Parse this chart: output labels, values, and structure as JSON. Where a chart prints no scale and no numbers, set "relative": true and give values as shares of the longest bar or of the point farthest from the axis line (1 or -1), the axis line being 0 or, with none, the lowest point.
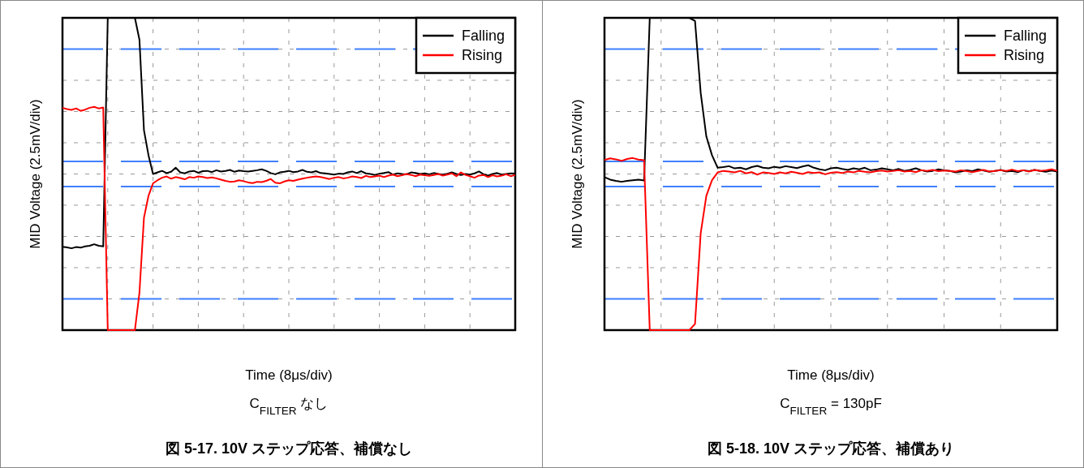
{
  "chart_data": [
    {
      "type": "line",
      "relative": true,
      "title": "図 5-17. 10V ステップ応答、補償なし",
      "xlabel": "Time (8μs/div)",
      "ylabel": "MID Voltage (2.5mV/div)",
      "annotations": [
        "C$_{FILTER}$ なし"
      ],
      "grid": true,
      "legend": "top right",
      "line_style": "solid",
      "marker": "none",
      "categories": [
        null,
        null,
        null,
        null,
        null,
        null,
        null,
        null,
        null,
        null,
        null,
        null,
        null,
        null,
        null,
        null,
        null,
        null,
        null,
        null,
        null,
        null,
        null,
        null,
        null,
        null,
        null,
        null,
        null,
        null,
        null,
        null,
        null,
        null,
        null,
        null,
        null,
        null,
        null,
        null,
        null,
        null,
        null,
        null,
        null,
        null,
        null,
        null,
        null,
        null,
        null,
        null,
        null,
        null,
        null,
        null,
        null,
        null,
        null,
        null,
        null,
        null,
        null,
        null,
        null,
        null,
        null,
        null,
        null,
        null,
        null,
        null,
        null,
        null,
        null,
        null,
        null,
        null,
        null,
        null,
        null,
        null,
        null,
        null,
        null,
        null,
        null,
        null,
        null,
        null,
        null,
        null,
        null,
        null,
        null,
        null,
        null,
        null,
        null,
        null,
        null
      ],
      "ref_lines": [
        {
          "axis": "y",
          "value": 0.9,
          "color": "#3f7fff",
          "line_style": "dashed"
        },
        {
          "axis": "y",
          "value": 0.54,
          "color": "#3f7fff",
          "line_style": "dashed"
        },
        {
          "axis": "y",
          "value": 0.46,
          "color": "#3f7fff",
          "line_style": "dashed"
        },
        {
          "axis": "y",
          "value": 0.1,
          "color": "#3f7fff",
          "line_style": "dashed"
        }
      ],
      "series": [
        {
          "name": "Falling",
          "color": "#000000",
          "values": [
            0.267,
            0.265,
            0.262,
            0.266,
            0.264,
            0.268,
            0.27,
            0.275,
            0.27,
            0.268,
            1,
            1,
            1,
            1,
            1,
            1,
            1,
            0.93,
            0.64,
            0.56,
            0.5,
            0.505,
            0.51,
            0.503,
            0.507,
            0.52,
            0.505,
            0.502,
            0.508,
            0.51,
            0.504,
            0.509,
            0.51,
            0.506,
            0.512,
            0.508,
            0.51,
            0.513,
            0.507,
            0.511,
            0.509,
            0.508,
            0.51,
            0.512,
            0.515,
            0.51,
            0.503,
            0.499,
            0.505,
            0.507,
            0.51,
            0.506,
            0.508,
            0.513,
            0.507,
            0.505,
            0.509,
            0.503,
            0.502,
            0.5,
            0.498,
            0.501,
            0.5,
            0.505,
            0.508,
            0.503,
            0.509,
            0.502,
            0.5,
            0.497,
            0.501,
            0.503,
            0.506,
            0.498,
            0.502,
            0.5,
            0.499,
            0.505,
            0.503,
            0.5,
            0.502,
            0.499,
            0.503,
            0.5,
            0.498,
            0.501,
            0.505,
            0.5,
            0.497,
            0.5,
            0.498,
            0.502,
            0.508,
            0.499,
            0.495,
            0.5,
            0.503,
            0.498,
            0.5,
            0.502,
            0.501
          ]
        },
        {
          "name": "Rising",
          "color": "#ff0000",
          "values": [
            0.712,
            0.708,
            0.705,
            0.71,
            0.702,
            0.706,
            0.712,
            0.715,
            0.71,
            0.713,
            0,
            0,
            0,
            0,
            0,
            0,
            0,
            0.12,
            0.36,
            0.43,
            0.47,
            0.48,
            0.488,
            0.492,
            0.485,
            0.49,
            0.487,
            0.483,
            0.49,
            0.488,
            0.492,
            0.49,
            0.487,
            0.489,
            0.486,
            0.482,
            0.478,
            0.475,
            0.476,
            0.48,
            0.477,
            0.473,
            0.471,
            0.475,
            0.474,
            0.478,
            0.484,
            0.472,
            0.47,
            0.476,
            0.48,
            0.478,
            0.482,
            0.485,
            0.488,
            0.49,
            0.492,
            0.49,
            0.487,
            0.484,
            0.488,
            0.49,
            0.486,
            0.488,
            0.492,
            0.49,
            0.487,
            0.494,
            0.49,
            0.492,
            0.495,
            0.49,
            0.495,
            0.498,
            0.493,
            0.496,
            0.5,
            0.497,
            0.493,
            0.498,
            0.496,
            0.494,
            0.497,
            0.5,
            0.495,
            0.498,
            0.502,
            0.493,
            0.505,
            0.497,
            0.493,
            0.488,
            0.495,
            0.497,
            0.49,
            0.496,
            0.492,
            0.495,
            0.499,
            0.493,
            0.497
          ]
        }
      ]
    },
    {
      "type": "line",
      "relative": true,
      "title": "図 5-18. 10V ステップ応答、補償あり",
      "xlabel": "Time (8μs/div)",
      "ylabel": "MID Voltage (2.5mV/div)",
      "annotations": [
        "C$_{FILTER}$ = 130pF"
      ],
      "grid": true,
      "legend": "top right",
      "line_style": "solid",
      "marker": "none",
      "categories": [
        null,
        null,
        null,
        null,
        null,
        null,
        null,
        null,
        null,
        null,
        null,
        null,
        null,
        null,
        null,
        null,
        null,
        null,
        null,
        null,
        null,
        null,
        null,
        null,
        null,
        null,
        null,
        null,
        null,
        null,
        null,
        null,
        null,
        null,
        null,
        null,
        null,
        null,
        null,
        null,
        null,
        null,
        null,
        null,
        null,
        null,
        null,
        null,
        null,
        null,
        null,
        null,
        null,
        null,
        null,
        null,
        null,
        null,
        null,
        null,
        null,
        null,
        null,
        null,
        null,
        null,
        null,
        null,
        null,
        null,
        null,
        null,
        null,
        null,
        null,
        null,
        null,
        null,
        null,
        null,
        null
      ],
      "ref_lines": [
        {
          "axis": "y",
          "value": 0.9,
          "color": "#3f7fff",
          "line_style": "dashed"
        },
        {
          "axis": "y",
          "value": 0.54,
          "color": "#3f7fff",
          "line_style": "dashed"
        },
        {
          "axis": "y",
          "value": 0.46,
          "color": "#3f7fff",
          "line_style": "dashed"
        },
        {
          "axis": "y",
          "value": 0.1,
          "color": "#3f7fff",
          "line_style": "dashed"
        }
      ],
      "series": [
        {
          "name": "Falling",
          "color": "#000000",
          "values": [
            0.49,
            0.482,
            0.478,
            0.475,
            0.478,
            0.48,
            0.482,
            0.479,
            1,
            1,
            1,
            1,
            1,
            1,
            1,
            1,
            0.99,
            0.76,
            0.62,
            0.56,
            0.52,
            0.522,
            0.525,
            0.518,
            0.52,
            0.515,
            0.522,
            0.526,
            0.52,
            0.518,
            0.523,
            0.52,
            0.525,
            0.522,
            0.519,
            0.524,
            0.528,
            0.52,
            0.515,
            0.512,
            0.518,
            0.52,
            0.516,
            0.513,
            0.518,
            0.515,
            0.52,
            0.512,
            0.514,
            0.518,
            0.515,
            0.512,
            0.516,
            0.51,
            0.513,
            0.518,
            0.512,
            0.508,
            0.51,
            0.515,
            0.512,
            0.51,
            0.505,
            0.508,
            0.512,
            0.509,
            0.515,
            0.511,
            0.507,
            0.51,
            0.513,
            0.508,
            0.51,
            0.506,
            0.512,
            0.509,
            0.513,
            0.51,
            0.507,
            0.511,
            0.508
          ]
        },
        {
          "name": "Rising",
          "color": "#ff0000",
          "values": [
            0.545,
            0.55,
            0.547,
            0.542,
            0.548,
            0.551,
            0.546,
            0.544,
            0,
            0,
            0,
            0,
            0,
            0,
            0,
            0,
            0.02,
            0.31,
            0.43,
            0.48,
            0.505,
            0.51,
            0.508,
            0.505,
            0.51,
            0.502,
            0.506,
            0.498,
            0.505,
            0.503,
            0.5,
            0.505,
            0.502,
            0.507,
            0.504,
            0.5,
            0.506,
            0.503,
            0.505,
            0.499,
            0.504,
            0.506,
            0.503,
            0.508,
            0.505,
            0.51,
            0.507,
            0.505,
            0.509,
            0.511,
            0.508,
            0.51,
            0.512,
            0.508,
            0.51,
            0.506,
            0.512,
            0.51,
            0.513,
            0.509,
            0.511,
            0.51,
            0.508,
            0.512,
            0.509,
            0.506,
            0.51,
            0.513,
            0.508,
            0.51,
            0.512,
            0.51,
            0.514,
            0.509,
            0.512,
            0.508,
            0.513,
            0.51,
            0.512,
            0.515,
            0.51
          ]
        }
      ]
    }
  ]
}
